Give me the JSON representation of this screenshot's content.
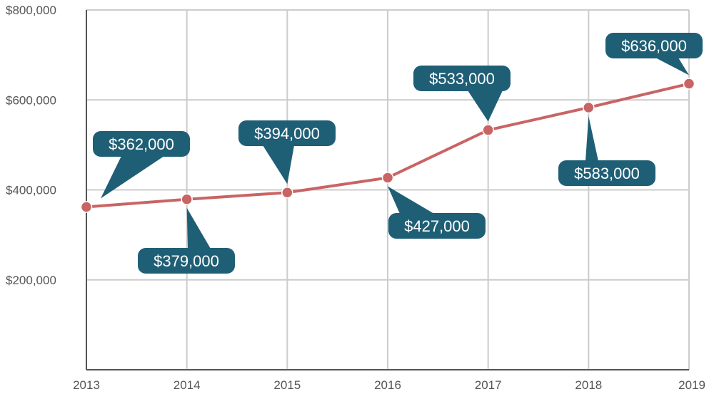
{
  "chart_data": {
    "type": "line",
    "title": "",
    "xlabel": "",
    "ylabel": "",
    "x": [
      "2013",
      "2014",
      "2015",
      "2016",
      "2017",
      "2018",
      "2019"
    ],
    "series": [
      {
        "values": [
          362000,
          379000,
          394000,
          427000,
          533000,
          583000,
          636000
        ],
        "labels": [
          "$362,000",
          "$379,000",
          "$394,000",
          "$427,000",
          "$533,000",
          "$583,000",
          "$636,000"
        ]
      }
    ],
    "ylim": [
      0,
      800000
    ],
    "yticks": [
      200000,
      400000,
      600000,
      800000
    ],
    "ytick_labels": [
      "$200,000",
      "$400,000",
      "$600,000",
      "$800,000"
    ],
    "grid": true,
    "colors": {
      "line": "#c96464",
      "marker": "#c96464",
      "callout": "#1f5f76",
      "callout_text": "#ffffff",
      "grid": "#cccccc",
      "axis": "#555555"
    }
  }
}
